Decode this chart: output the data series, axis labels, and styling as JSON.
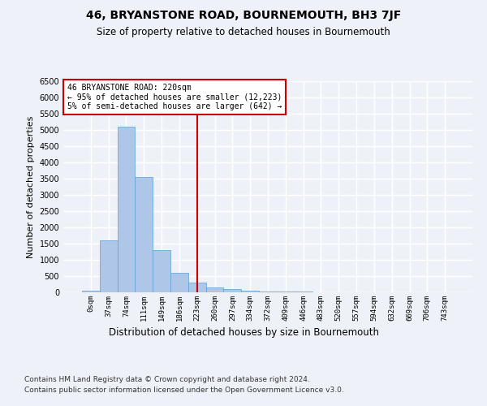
{
  "title": "46, BRYANSTONE ROAD, BOURNEMOUTH, BH3 7JF",
  "subtitle": "Size of property relative to detached houses in Bournemouth",
  "xlabel": "Distribution of detached houses by size in Bournemouth",
  "ylabel": "Number of detached properties",
  "footnote1": "Contains HM Land Registry data © Crown copyright and database right 2024.",
  "footnote2": "Contains public sector information licensed under the Open Government Licence v3.0.",
  "annotation_line1": "46 BRYANSTONE ROAD: 220sqm",
  "annotation_line2": "← 95% of detached houses are smaller (12,223)",
  "annotation_line3": "5% of semi-detached houses are larger (642) →",
  "bar_color": "#aec6e8",
  "bar_edge_color": "#5a9fd4",
  "vline_color": "#cc0000",
  "vline_x": 6,
  "bin_labels": [
    "0sqm",
    "37sqm",
    "74sqm",
    "111sqm",
    "149sqm",
    "186sqm",
    "223sqm",
    "260sqm",
    "297sqm",
    "334sqm",
    "372sqm",
    "409sqm",
    "446sqm",
    "483sqm",
    "520sqm",
    "557sqm",
    "594sqm",
    "632sqm",
    "669sqm",
    "706sqm",
    "743sqm"
  ],
  "bar_heights": [
    50,
    1600,
    5100,
    3550,
    1300,
    600,
    300,
    150,
    100,
    50,
    30,
    20,
    20,
    5,
    3,
    2,
    1,
    1,
    0,
    0,
    0
  ],
  "ylim": [
    0,
    6500
  ],
  "yticks": [
    0,
    500,
    1000,
    1500,
    2000,
    2500,
    3000,
    3500,
    4000,
    4500,
    5000,
    5500,
    6000,
    6500
  ],
  "background_color": "#eef2f8",
  "plot_bg_color": "#eef2f8",
  "grid_color": "#ffffff",
  "annotation_box_color": "#ffffff",
  "annotation_box_edge": "#cc0000",
  "title_fontsize": 10,
  "subtitle_fontsize": 8.5,
  "ylabel_fontsize": 8,
  "xlabel_fontsize": 8.5,
  "tick_fontsize": 7,
  "xtick_fontsize": 6.5,
  "footnote_fontsize": 6.5
}
